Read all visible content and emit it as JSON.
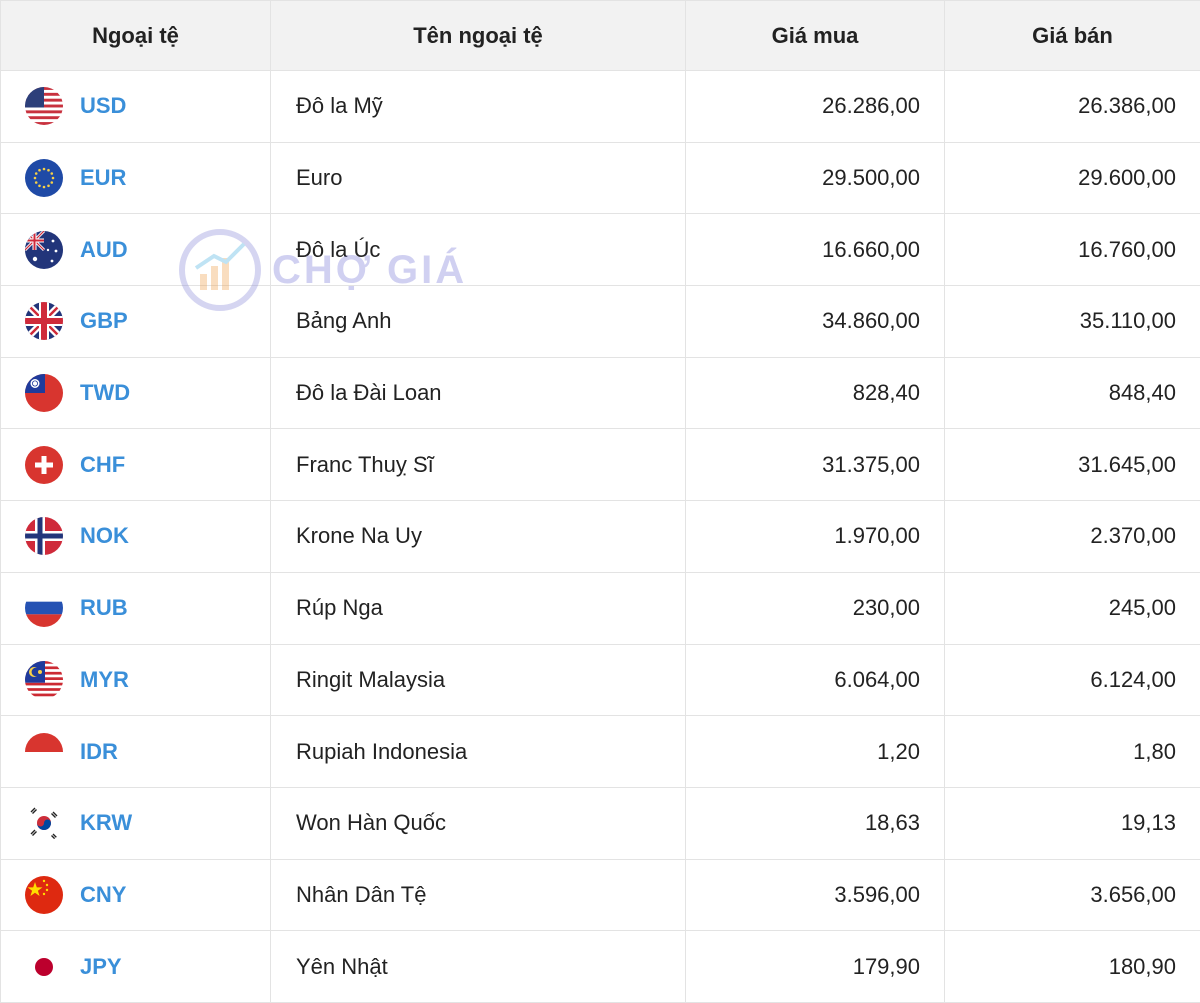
{
  "table": {
    "headers": {
      "code": "Ngoại tệ",
      "name": "Tên ngoại tệ",
      "buy": "Giá mua",
      "sell": "Giá bán"
    },
    "rows": [
      {
        "flag": "us-flag-icon",
        "code": "USD",
        "name": "Đô la Mỹ",
        "buy": "26.286,00",
        "sell": "26.386,00",
        "trend": "up"
      },
      {
        "flag": "eu-flag-icon",
        "code": "EUR",
        "name": "Euro",
        "buy": "29.500,00",
        "sell": "29.600,00",
        "trend": "down"
      },
      {
        "flag": "au-flag-icon",
        "code": "AUD",
        "name": "Đô la Úc",
        "buy": "16.660,00",
        "sell": "16.760,00",
        "trend": "down"
      },
      {
        "flag": "gb-flag-icon",
        "code": "GBP",
        "name": "Bảng Anh",
        "buy": "34.860,00",
        "sell": "35.110,00",
        "trend": "down"
      },
      {
        "flag": "tw-flag-icon",
        "code": "TWD",
        "name": "Đô la Đài Loan",
        "buy": "828,40",
        "sell": "848,40",
        "trend": "down"
      },
      {
        "flag": "ch-flag-icon",
        "code": "CHF",
        "name": "Franc Thuỵ Sĩ",
        "buy": "31.375,00",
        "sell": "31.645,00",
        "trend": "down"
      },
      {
        "flag": "no-flag-icon",
        "code": "NOK",
        "name": "Krone Na Uy",
        "buy": "1.970,00",
        "sell": "2.370,00",
        "trend": "up"
      },
      {
        "flag": "ru-flag-icon",
        "code": "RUB",
        "name": "Rúp Nga",
        "buy": "230,00",
        "sell": "245,00",
        "trend": "down"
      },
      {
        "flag": "my-flag-icon",
        "code": "MYR",
        "name": "Ringit Malaysia",
        "buy": "6.064,00",
        "sell": "6.124,00",
        "trend": "down"
      },
      {
        "flag": "id-flag-icon",
        "code": "IDR",
        "name": "Rupiah Indonesia",
        "buy": "1,20",
        "sell": "1,80",
        "trend": "up"
      },
      {
        "flag": "kr-flag-icon",
        "code": "KRW",
        "name": "Won Hàn Quốc",
        "buy": "18,63",
        "sell": "19,13",
        "trend": "up"
      },
      {
        "flag": "cn-flag-icon",
        "code": "CNY",
        "name": "Nhân Dân Tệ",
        "buy": "3.596,00",
        "sell": "3.656,00",
        "trend": "up"
      },
      {
        "flag": "jp-flag-icon",
        "code": "JPY",
        "name": "Yên Nhật",
        "buy": "179,90",
        "sell": "180,90",
        "trend": "down"
      }
    ]
  },
  "colors": {
    "up": "#3dbb74",
    "down": "#e0302d",
    "code": "#3a8fd9",
    "header_bg": "#f2f2f2"
  },
  "watermark": {
    "text": "CHỢ GIÁ",
    "icon": "cho-gia-logo-icon"
  }
}
